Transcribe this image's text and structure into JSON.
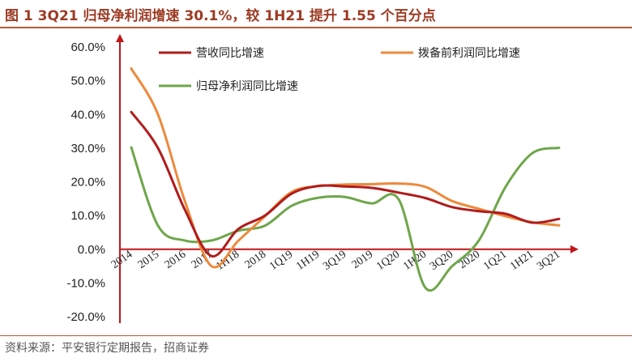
{
  "figure": {
    "title": "图 1 3Q21 归母净利润增速 30.1%，较 1H21 提升 1.55 个百分点",
    "source": "资料来源：平安银行定期报告，招商证券"
  },
  "chart_data": {
    "type": "line",
    "title": "图 1 3Q21 归母净利润增速 30.1%，较 1H21 提升 1.55 个百分点",
    "xlabel": "",
    "ylabel": "",
    "ylim": [
      -20,
      60
    ],
    "yticks": [
      60,
      50,
      40,
      30,
      20,
      10,
      0,
      -10,
      -20
    ],
    "ytick_labels": [
      "60.0%",
      "50.0%",
      "40.0%",
      "30.0%",
      "20.0%",
      "10.0%",
      "0.0%",
      "-10.0%",
      "-20.0%"
    ],
    "categories": [
      "2014",
      "2015",
      "2016",
      "2017",
      "1H18",
      "2018",
      "1Q19",
      "1H19",
      "3Q19",
      "2019",
      "1Q20",
      "1H20",
      "3Q20",
      "2020",
      "1Q21",
      "1H21",
      "3Q21"
    ],
    "grid": false,
    "legend_position": "top",
    "series": [
      {
        "name": "营收同比增速",
        "color": "#b01c1c",
        "values": [
          40.7,
          30.0,
          11.8,
          -2.0,
          6.0,
          10.0,
          16.5,
          18.8,
          18.6,
          18.2,
          16.8,
          15.2,
          12.5,
          11.3,
          10.5,
          7.9,
          9.0
        ]
      },
      {
        "name": "拨备前利润同比增速",
        "color": "#ec8a3c",
        "values": [
          53.6,
          40.0,
          14.4,
          -5.0,
          2.5,
          9.8,
          17.0,
          18.7,
          19.2,
          19.3,
          19.5,
          18.5,
          14.3,
          12.0,
          9.8,
          8.0,
          7.1
        ]
      },
      {
        "name": "归母净利润同比增速",
        "color": "#6ea64a",
        "values": [
          30.2,
          7.0,
          2.6,
          2.6,
          5.5,
          7.0,
          12.9,
          15.3,
          15.5,
          13.6,
          14.8,
          -11.4,
          -5.0,
          2.6,
          18.5,
          28.5,
          30.1
        ]
      }
    ]
  }
}
